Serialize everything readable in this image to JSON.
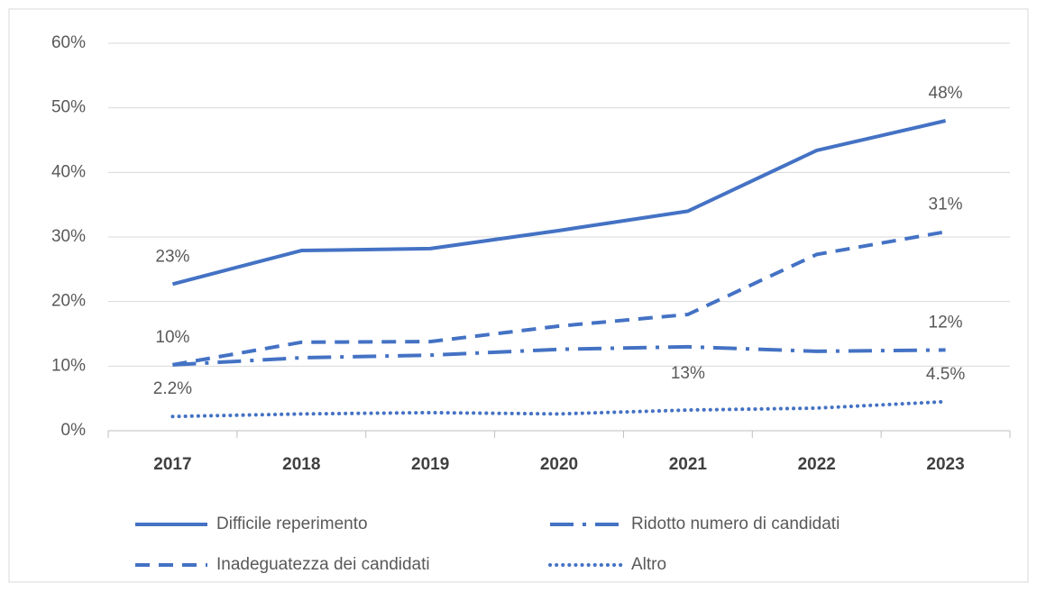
{
  "chart_data": {
    "type": "line",
    "categories": [
      "2017",
      "2018",
      "2019",
      "2020",
      "2021",
      "2022",
      "2023"
    ],
    "series": [
      {
        "name": "Difficile reperimento",
        "color": "#4472c4",
        "dash": "solid",
        "values": [
          22.7,
          27.9,
          28.2,
          31,
          34,
          43.4,
          48
        ],
        "value_labels": [
          "23%",
          null,
          null,
          null,
          null,
          null,
          "48%"
        ]
      },
      {
        "name": "Inadeguatezza dei candidati",
        "color": "#4472c4",
        "dash": "dashed",
        "values": [
          10.2,
          13.7,
          13.8,
          16.2,
          18,
          27.3,
          30.8
        ],
        "value_labels": [
          "10%",
          null,
          null,
          null,
          null,
          null,
          "31%"
        ]
      },
      {
        "name": "Ridotto numero di candidati",
        "color": "#4472c4",
        "dash": "dashdot",
        "values": [
          10.2,
          11.3,
          11.7,
          12.6,
          13,
          12.3,
          12.5
        ],
        "value_labels": [
          null,
          null,
          null,
          null,
          "13%",
          null,
          "12%"
        ]
      },
      {
        "name": "Altro",
        "color": "#4472c4",
        "dash": "dotted",
        "values": [
          2.2,
          2.6,
          2.8,
          2.6,
          3.2,
          3.5,
          4.5
        ],
        "value_labels": [
          "2.2%",
          null,
          null,
          null,
          null,
          null,
          "4.5%"
        ]
      }
    ],
    "ylim": [
      0,
      60
    ],
    "yticks": [
      {
        "value": 0,
        "label": "0%"
      },
      {
        "value": 10,
        "label": "10%"
      },
      {
        "value": 20,
        "label": "20%"
      },
      {
        "value": 30,
        "label": "30%"
      },
      {
        "value": 40,
        "label": "40%"
      },
      {
        "value": 50,
        "label": "50%"
      },
      {
        "value": 60,
        "label": "60%"
      }
    ],
    "grid": true,
    "legend": "bottom"
  }
}
